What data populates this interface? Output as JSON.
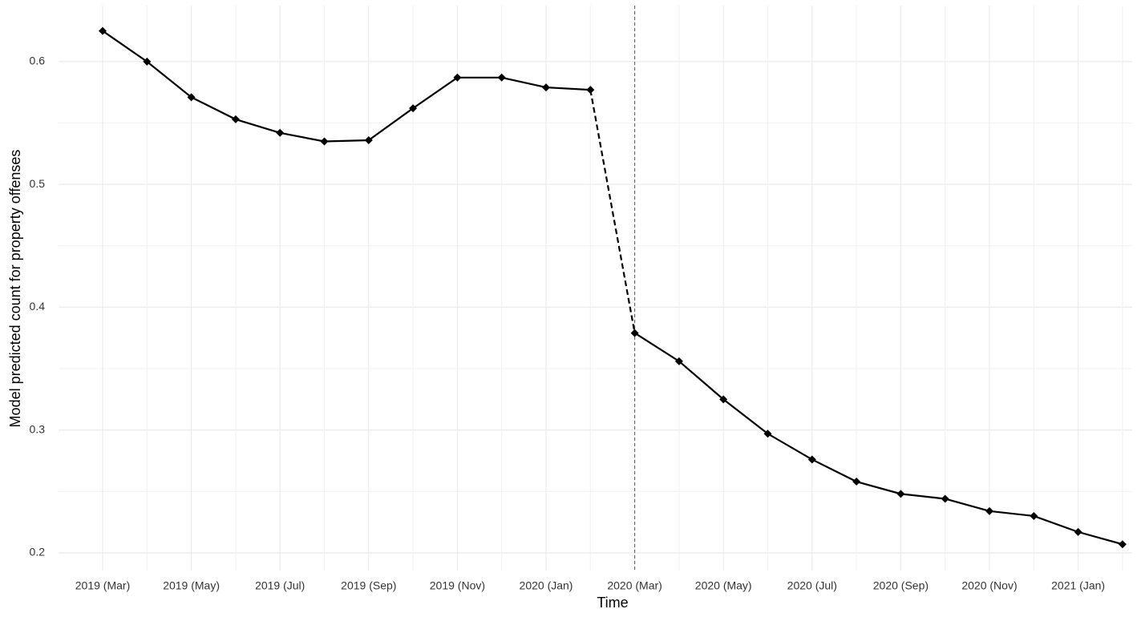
{
  "chart_data": {
    "type": "line",
    "x_label": "Time",
    "y_label": "Model predicted count for property offenses",
    "categories": [
      "2019 (Mar)",
      null,
      "2019 (May)",
      null,
      "2019 (Jul)",
      null,
      "2019 (Sep)",
      null,
      "2019 (Nov)",
      null,
      "2020 (Jan)",
      null,
      "2020 (Mar)",
      null,
      "2020 (May)",
      null,
      "2020 (Jul)",
      null,
      "2020 (Sep)",
      null,
      "2020 (Nov)",
      null,
      "2021 (Jan)",
      null
    ],
    "series": [
      {
        "name": "Predicted count",
        "color": "#000000",
        "values": [
          0.625,
          0.6,
          0.571,
          0.553,
          0.542,
          0.535,
          0.536,
          0.562,
          0.587,
          0.587,
          0.579,
          0.577,
          0.379,
          0.356,
          0.325,
          0.297,
          0.276,
          0.258,
          0.248,
          0.244,
          0.234,
          0.23,
          0.217,
          0.207
        ]
      }
    ],
    "break_index": 12,
    "ylim": [
      0.1856,
      0.6456
    ],
    "yticks": [
      0.2,
      0.3,
      0.4,
      0.5,
      0.6
    ],
    "y_minor_ticks": [
      0.25,
      0.35,
      0.45,
      0.55
    ],
    "grid": true
  }
}
